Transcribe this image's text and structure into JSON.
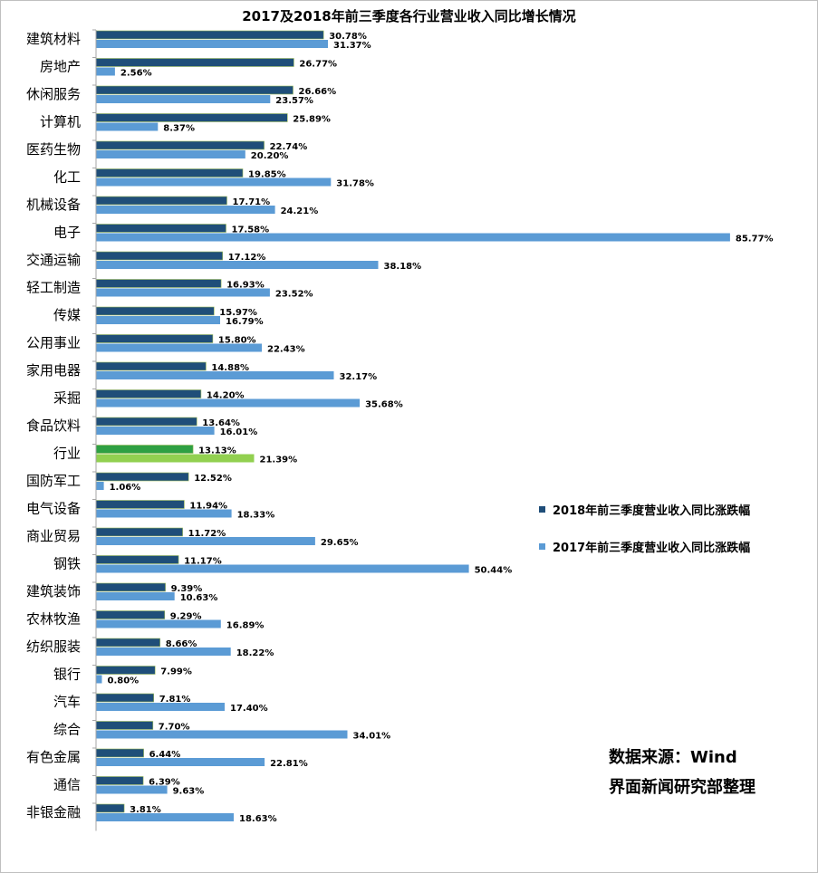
{
  "chart_data": {
    "type": "bar",
    "orientation": "horizontal",
    "title": "2017及2018年前三季度各行业营业收入同比增长情况",
    "categories": [
      "建筑材料",
      "房地产",
      "休闲服务",
      "计算机",
      "医药生物",
      "化工",
      "机械设备",
      "电子",
      "交通运输",
      "轻工制造",
      "传媒",
      "公用事业",
      "家用电器",
      "采掘",
      "食品饮料",
      "行业",
      "国防军工",
      "电气设备",
      "商业贸易",
      "钢铁",
      "建筑装饰",
      "农林牧渔",
      "纺织服装",
      "银行",
      "汽车",
      "综合",
      "有色金属",
      "通信",
      "非银金融"
    ],
    "series": [
      {
        "name": "2018年前三季度营业收入同比涨跌幅",
        "color": "#1f4e79",
        "values": [
          30.78,
          26.77,
          26.66,
          25.89,
          22.74,
          19.85,
          17.71,
          17.58,
          17.12,
          16.93,
          15.97,
          15.8,
          14.88,
          14.2,
          13.64,
          13.13,
          12.52,
          11.94,
          11.72,
          11.17,
          9.39,
          9.29,
          8.66,
          7.99,
          7.81,
          7.7,
          6.44,
          6.39,
          3.81
        ],
        "labels": [
          "30.78%",
          "26.77%",
          "26.66%",
          "25.89%",
          "22.74%",
          "19.85%",
          "17.71%",
          "17.58%",
          "17.12%",
          "16.93%",
          "15.97%",
          "15.80%",
          "14.88%",
          "14.20%",
          "13.64%",
          "13.13%",
          "12.52%",
          "11.94%",
          "11.72%",
          "11.17%",
          "9.39%",
          "9.29%",
          "8.66%",
          "7.99%",
          "7.81%",
          "7.70%",
          "6.44%",
          "6.39%",
          "3.81%"
        ]
      },
      {
        "name": "2017年前三季度营业收入同比涨跌幅",
        "color": "#5b9bd5",
        "values": [
          31.37,
          2.56,
          23.57,
          8.37,
          20.2,
          31.78,
          24.21,
          85.77,
          38.18,
          23.52,
          16.79,
          22.43,
          32.17,
          35.68,
          16.01,
          21.39,
          1.06,
          18.33,
          29.65,
          50.44,
          10.63,
          16.89,
          18.22,
          0.8,
          17.4,
          34.01,
          22.81,
          9.63,
          18.63
        ],
        "labels": [
          "31.37%",
          "2.56%",
          "23.57%",
          "8.37%",
          "20.20%",
          "31.78%",
          "24.21%",
          "85.77%",
          "38.18%",
          "23.52%",
          "16.79%",
          "22.43%",
          "32.17%",
          "35.68%",
          "16.01%",
          "21.39%",
          "1.06%",
          "18.33%",
          "29.65%",
          "50.44%",
          "10.63%",
          "16.89%",
          "18.22%",
          "0.80%",
          "17.40%",
          "34.01%",
          "22.81%",
          "9.63%",
          "18.63%"
        ]
      }
    ],
    "highlight": {
      "category": "行业",
      "colors": [
        "#2ea043",
        "#92d050"
      ]
    },
    "xlim": [
      0,
      100
    ],
    "legend_position": "right",
    "grid": false
  },
  "notes": {
    "source": "数据来源：Wind",
    "credit": "界面新闻研究部整理"
  }
}
